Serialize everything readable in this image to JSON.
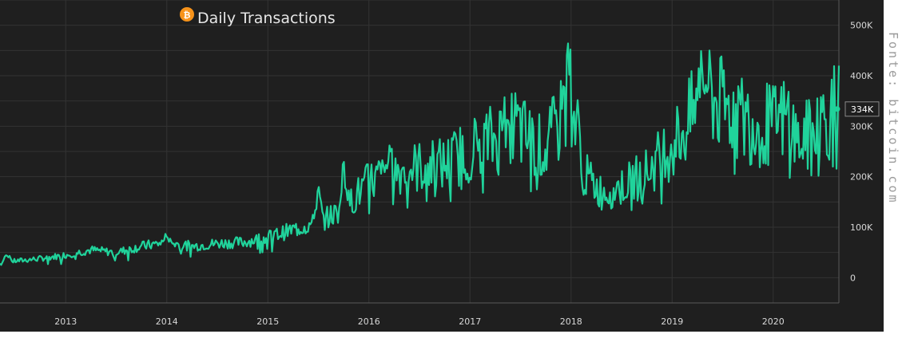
{
  "chart_data": {
    "type": "area",
    "title": "Daily Transactions",
    "title_icon": "bitcoin-icon",
    "xlabel": "",
    "ylabel": "",
    "x_tick_labels": [
      "2013",
      "2014",
      "2015",
      "2016",
      "2017",
      "2018",
      "2019",
      "2020"
    ],
    "y_tick_labels": [
      "500K",
      "400K",
      "300K",
      "200K",
      "100K",
      "0"
    ],
    "y_tick_values": [
      500000,
      400000,
      300000,
      200000,
      100000,
      0
    ],
    "ylim": [
      -50000,
      550000
    ],
    "xlim": [
      2012.35,
      2020.65
    ],
    "last_value_label": "334K",
    "last_value": 334000,
    "grid": true,
    "series": [
      {
        "color": "#20d39b",
        "points": [
          [
            2012.35,
            28000
          ],
          [
            2012.5,
            33000
          ],
          [
            2012.75,
            38000
          ],
          [
            2013.0,
            45000
          ],
          [
            2013.25,
            55000
          ],
          [
            2013.5,
            50000
          ],
          [
            2013.75,
            62000
          ],
          [
            2014.0,
            70000
          ],
          [
            2014.25,
            62000
          ],
          [
            2014.5,
            68000
          ],
          [
            2014.75,
            70000
          ],
          [
            2015.0,
            80000
          ],
          [
            2015.25,
            95000
          ],
          [
            2015.5,
            110000
          ],
          [
            2015.75,
            135000
          ],
          [
            2016.0,
            190000
          ],
          [
            2016.25,
            210000
          ],
          [
            2016.5,
            220000
          ],
          [
            2016.75,
            225000
          ],
          [
            2017.0,
            255000
          ],
          [
            2017.25,
            275000
          ],
          [
            2017.45,
            300000
          ],
          [
            2017.6,
            270000
          ],
          [
            2017.75,
            250000
          ],
          [
            2017.9,
            320000
          ],
          [
            2017.96,
            390000
          ],
          [
            2018.05,
            300000
          ],
          [
            2018.15,
            200000
          ],
          [
            2018.3,
            170000
          ],
          [
            2018.5,
            180000
          ],
          [
            2018.75,
            210000
          ],
          [
            2019.0,
            265000
          ],
          [
            2019.15,
            300000
          ],
          [
            2019.3,
            370000
          ],
          [
            2019.5,
            340000
          ],
          [
            2019.75,
            310000
          ],
          [
            2020.0,
            300000
          ],
          [
            2020.15,
            320000
          ],
          [
            2020.25,
            265000
          ],
          [
            2020.4,
            290000
          ],
          [
            2020.5,
            315000
          ],
          [
            2020.6,
            325000
          ],
          [
            2020.65,
            334000
          ]
        ],
        "spikes": [
          [
            2012.42,
            55000
          ],
          [
            2014.0,
            95000
          ],
          [
            2015.5,
            200000
          ],
          [
            2015.75,
            250000
          ],
          [
            2016.2,
            270000
          ],
          [
            2017.35,
            340000
          ],
          [
            2017.96,
            495000
          ],
          [
            2019.32,
            445000
          ]
        ]
      }
    ]
  },
  "source_note": "Fonte: bitcoin.com",
  "colors": {
    "background": "#1f1f1f",
    "grid": "#3a3a3a",
    "line": "#20d39b",
    "text": "#d8d8d8",
    "bitcoin_icon": "#f7931a"
  }
}
